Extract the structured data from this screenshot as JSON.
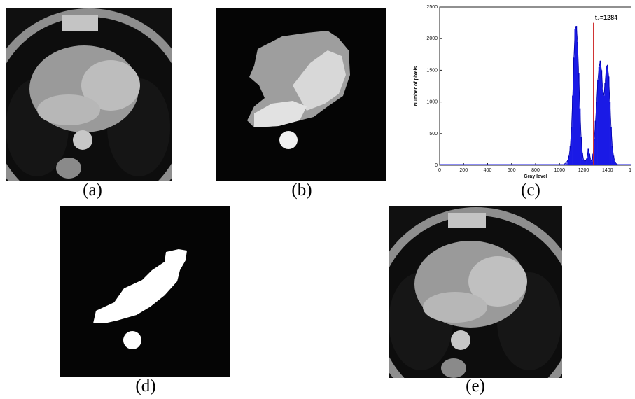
{
  "captions": {
    "a": "(a)",
    "b": "(b)",
    "c": "(c)",
    "d": "(d)",
    "e": "(e)"
  },
  "panels": {
    "a": "ct-slice-original",
    "b": "segmented-heart-mask",
    "c": "gray-level-histogram",
    "d": "thresholded-binary-mask",
    "e": "ct-slice-result"
  },
  "chart_data": {
    "type": "bar",
    "xlabel": "Gray level",
    "ylabel": "Number of pixels",
    "xlim": [
      0,
      1600
    ],
    "ylim": [
      0,
      2500
    ],
    "xticks": [
      "0",
      "200",
      "400",
      "600",
      "800",
      "1000",
      "1200",
      "1400",
      "16"
    ],
    "yticks": [
      "0",
      "500",
      "1000",
      "1500",
      "2000",
      "2500"
    ],
    "threshold_label": "t₂=1284",
    "threshold": 1284,
    "bar_color": "#1a1ae6",
    "threshold_color": "#cc2222",
    "x": [
      1040,
      1055,
      1070,
      1080,
      1090,
      1100,
      1110,
      1120,
      1130,
      1140,
      1150,
      1160,
      1170,
      1180,
      1190,
      1200,
      1210,
      1220,
      1230,
      1240,
      1250,
      1260,
      1270,
      1280,
      1290,
      1300,
      1310,
      1320,
      1330,
      1340,
      1350,
      1360,
      1370,
      1380,
      1390,
      1400,
      1410,
      1420,
      1430,
      1440,
      1450,
      1460,
      1470,
      1480,
      1490
    ],
    "values": [
      20,
      40,
      80,
      150,
      300,
      600,
      1100,
      1700,
      2150,
      2200,
      1950,
      1450,
      900,
      450,
      200,
      90,
      60,
      80,
      120,
      260,
      180,
      90,
      60,
      180,
      420,
      700,
      1000,
      1350,
      1550,
      1650,
      1500,
      1200,
      1100,
      1300,
      1550,
      1580,
      1400,
      1000,
      600,
      300,
      150,
      70,
      30,
      15,
      8
    ]
  }
}
